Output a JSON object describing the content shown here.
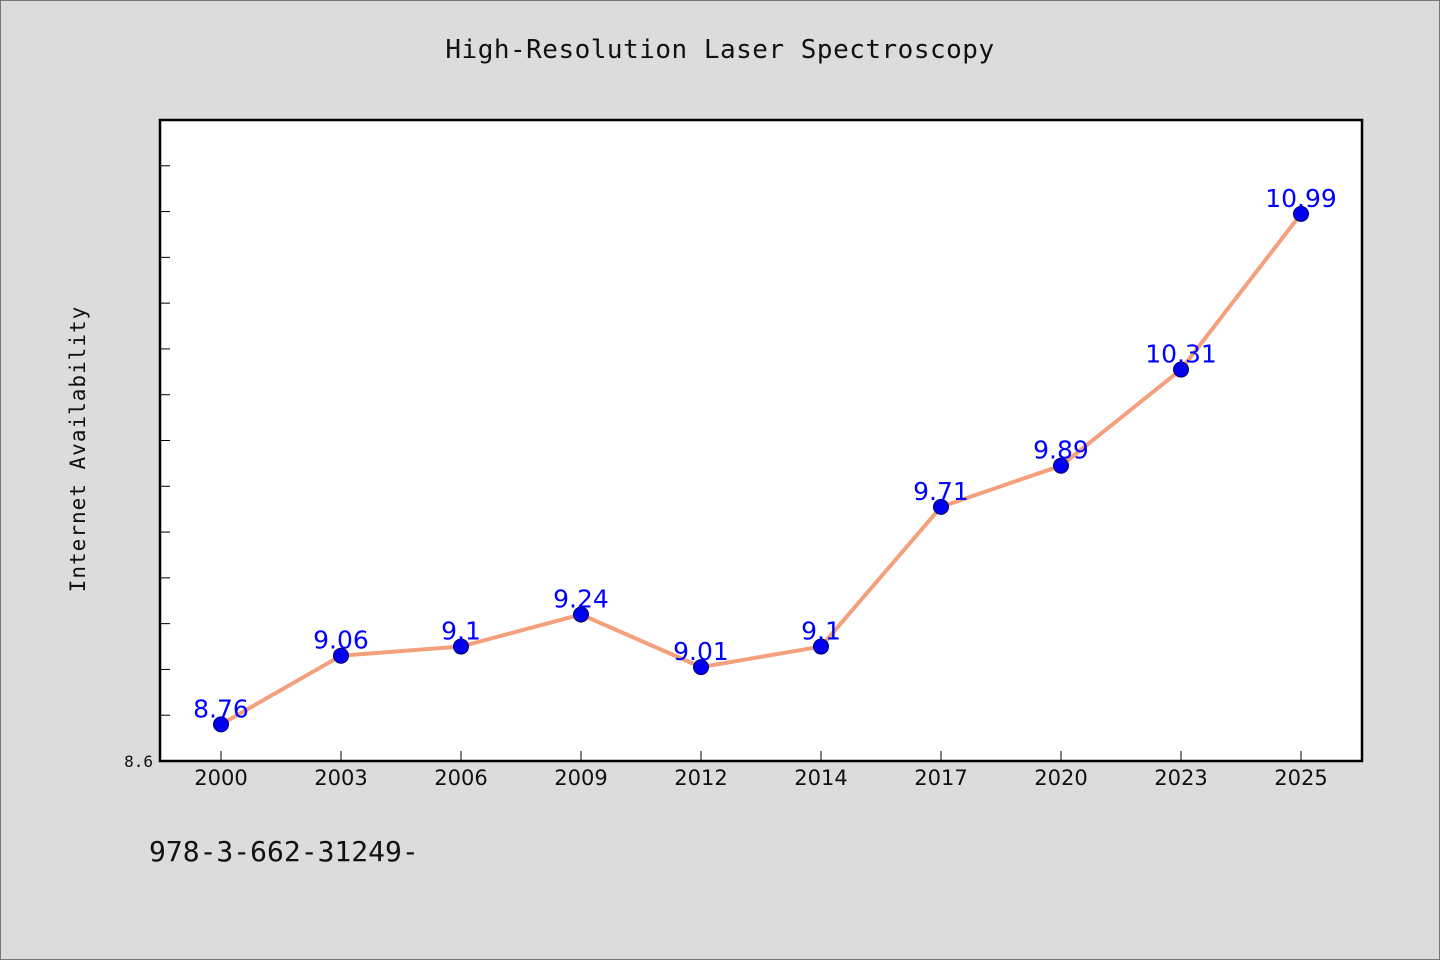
{
  "chart_data": {
    "type": "line",
    "title": "High-Resolution Laser Spectroscopy",
    "xlabel": "",
    "ylabel": "Internet Availability",
    "categories": [
      "2000",
      "2003",
      "2006",
      "2009",
      "2012",
      "2014",
      "2017",
      "2020",
      "2023",
      "2025"
    ],
    "series": [
      {
        "values": [
          8.76,
          9.06,
          9.1,
          9.24,
          9.01,
          9.1,
          9.71,
          9.89,
          10.31,
          10.99
        ]
      }
    ],
    "data_labels": [
      "8.76",
      "9.06",
      "9.1",
      "9.24",
      "9.01",
      "9.1",
      "9.71",
      "9.89",
      "10.31",
      "10.99"
    ],
    "ylim": [
      8.6,
      11.4
    ],
    "y_tick_labels": [
      "8.6"
    ],
    "grid": false,
    "legend": "none",
    "colors": {
      "line": "#f4a07c",
      "marker": "#0000ee",
      "label": "#0000ff",
      "background": "#dcdcdc",
      "plot_area": "#ffffff"
    }
  },
  "footer": {
    "text": "978-3-662-31249-"
  }
}
